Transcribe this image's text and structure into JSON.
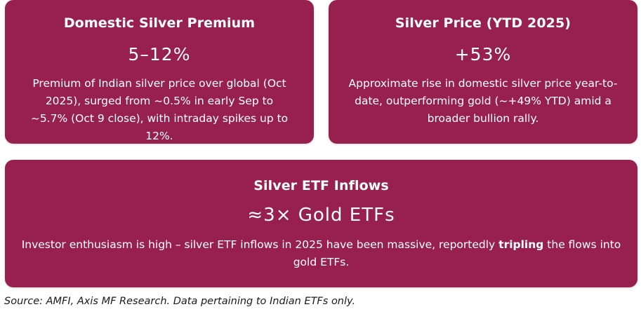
{
  "cards": {
    "premium": {
      "title": "Domestic Silver Premium",
      "value": "5–12%",
      "description": "Premium of Indian silver price over global (Oct 2025), surged from ~0.5% in early Sep to ~5.7% (Oct 9 close), with intraday spikes up to 12%."
    },
    "price": {
      "title": "Silver Price (YTD 2025)",
      "value": "+53%",
      "description": "Approximate rise in domestic silver price year-to-date, outperforming gold (~+49% YTD) amid a broader bullion rally."
    },
    "etf": {
      "title": "Silver ETF Inflows",
      "value": "≈3× Gold ETFs",
      "description_before": "Investor enthusiasm is high – silver ETF inflows in 2025 have been massive, reportedly ",
      "description_bold": "tripling",
      "description_after": " the flows into gold ETFs."
    }
  },
  "source": "Source: AMFI, Axis MF Research. Data pertaining to Indian ETFs only.",
  "colors": {
    "card_background": "#97204f",
    "card_text": "#ffffff"
  }
}
